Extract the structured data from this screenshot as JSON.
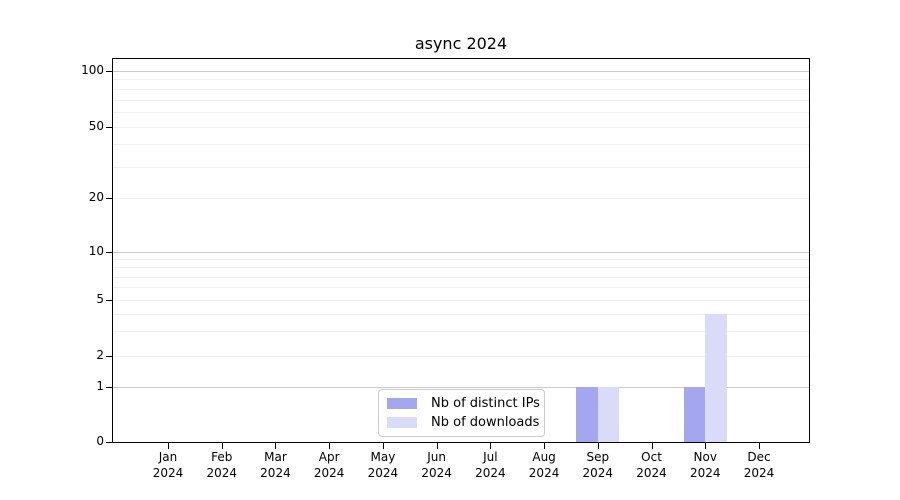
{
  "chart_data": {
    "type": "bar",
    "title": "async 2024",
    "categories": [
      "Jan",
      "Feb",
      "Mar",
      "Apr",
      "May",
      "Jun",
      "Jul",
      "Aug",
      "Sep",
      "Oct",
      "Nov",
      "Dec"
    ],
    "category_year": "2024",
    "series": [
      {
        "name": "Nb of distinct IPs",
        "color": "#a4a7f0",
        "values": [
          0,
          0,
          0,
          0,
          0,
          0,
          0,
          0,
          1,
          0,
          1,
          0
        ]
      },
      {
        "name": "Nb of downloads",
        "color": "#d9dbf8",
        "values": [
          0,
          0,
          0,
          0,
          0,
          0,
          0,
          0,
          1,
          0,
          4,
          0
        ]
      }
    ],
    "xlabel": "",
    "ylabel": "",
    "y_axis": {
      "scale": "log-like",
      "range": [
        0,
        100
      ],
      "ticks": [
        0,
        1,
        2,
        5,
        10,
        20,
        50,
        100
      ],
      "major_gridlines": [
        1,
        10,
        100
      ],
      "minor_gridlines": [
        2,
        3,
        4,
        5,
        6,
        7,
        8,
        9,
        20,
        30,
        40,
        50,
        60,
        70,
        80,
        90
      ]
    },
    "grid": true,
    "legend_position": "lower center-left"
  },
  "colors": {
    "background": "#ffffff",
    "spine": "#000000",
    "major_grid": "#c9c9c9",
    "minor_grid": "#efefef",
    "legend_border": "#cccccc",
    "bar_distinct_ips": "#a4a7f0",
    "bar_downloads": "#d9dbf8"
  }
}
